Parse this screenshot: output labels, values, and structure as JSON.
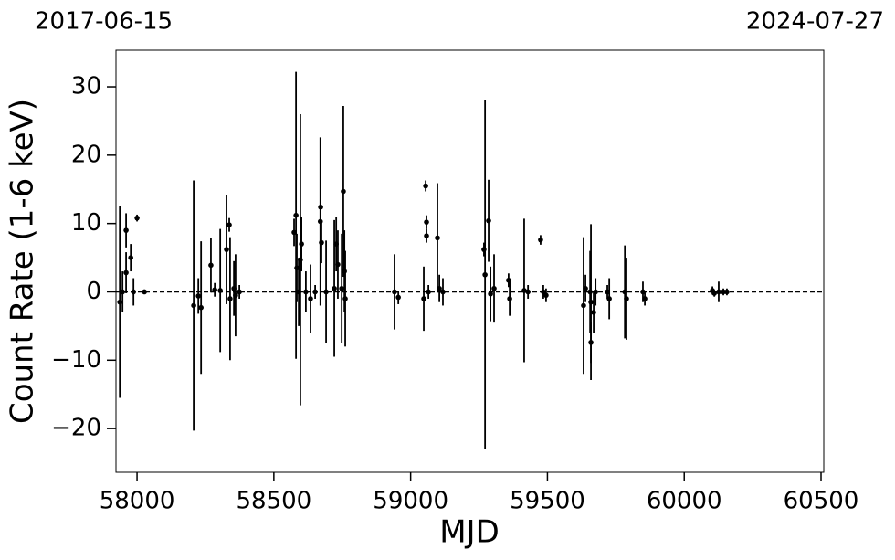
{
  "chart_data": {
    "type": "errorbar",
    "top_left_label": "2017-06-15",
    "top_right_label": "2024-07-27",
    "x_label": "MJD",
    "y_label": "Count Rate (1-6 keV)",
    "xlim": [
      57923,
      60510
    ],
    "ylim": [
      -26.4,
      35.35
    ],
    "xticks": [
      58000,
      58500,
      59000,
      59500,
      60000,
      60500
    ],
    "yticks": [
      {
        "value": -20,
        "label": "−20"
      },
      {
        "value": -10,
        "label": "−10"
      },
      0,
      10,
      20,
      30
    ],
    "hline": 0,
    "series": [
      {
        "color": "#000000",
        "x": [
          57937,
          57947,
          57960,
          57960,
          57977,
          57987,
          58000,
          58027,
          58207,
          58224,
          58234,
          58270,
          58284,
          58304,
          58327,
          58337,
          58340,
          58354,
          58360,
          58374,
          58574,
          58581,
          58584,
          58591,
          58597,
          58601,
          58617,
          58634,
          58651,
          58670,
          58671,
          58674,
          58691,
          58721,
          58728,
          58734,
          58748,
          58754,
          58758,
          58761,
          58941,
          58955,
          59048,
          59055,
          59058,
          59058,
          59065,
          59098,
          59105,
          59118,
          59268,
          59272,
          59285,
          59292,
          59305,
          59358,
          59362,
          59415,
          59429,
          59475,
          59485,
          59495,
          59632,
          59639,
          59656,
          59659,
          59659,
          59669,
          59676,
          59719,
          59726,
          59783,
          59789,
          59849,
          59856,
          60103,
          60110,
          60126,
          60143,
          60156
        ],
        "values": [
          -1.5,
          0,
          9,
          2.8,
          5,
          0,
          10.8,
          0,
          -2,
          -0.6,
          -2.3,
          3.9,
          0.3,
          0.2,
          6.2,
          9.8,
          -1,
          0.5,
          -0.5,
          0,
          8.7,
          11.2,
          3.5,
          0,
          4.7,
          7,
          0,
          -1,
          0,
          10.3,
          12.4,
          7.2,
          0,
          0.5,
          7,
          4,
          0.5,
          14.7,
          3,
          -1,
          0,
          -0.8,
          -1,
          15.5,
          10.2,
          8.2,
          0,
          7.9,
          0.5,
          0,
          6.2,
          2.5,
          10.4,
          -0.3,
          0.5,
          1.7,
          -1,
          0.2,
          0,
          7.6,
          0,
          -0.5,
          -2,
          0.5,
          0,
          -1.5,
          -7.4,
          -3,
          0,
          0,
          -1,
          0,
          -1,
          0,
          -1,
          0.2,
          -0.2,
          0,
          0,
          0
        ],
        "errors": [
          14,
          3,
          2.5,
          3,
          2,
          2,
          0.5,
          0.3,
          18.3,
          2.6,
          9.7,
          4,
          1,
          9,
          8,
          1,
          9,
          4,
          6,
          1,
          2,
          21,
          5,
          5,
          21.3,
          4,
          3,
          5,
          1,
          12.3,
          1,
          3,
          7.5,
          10,
          4,
          5,
          8,
          12.5,
          6,
          7,
          5.5,
          1,
          4.7,
          0.8,
          1,
          1,
          1,
          8,
          2,
          2,
          1,
          25.5,
          6,
          4,
          5,
          1,
          2.5,
          10.5,
          1,
          0.7,
          1,
          1,
          10,
          2,
          6,
          11.4,
          3,
          3,
          2,
          1,
          3,
          6.8,
          6,
          1.5,
          1,
          0.6,
          0.5,
          1.5,
          0.5,
          0.5
        ]
      }
    ]
  }
}
